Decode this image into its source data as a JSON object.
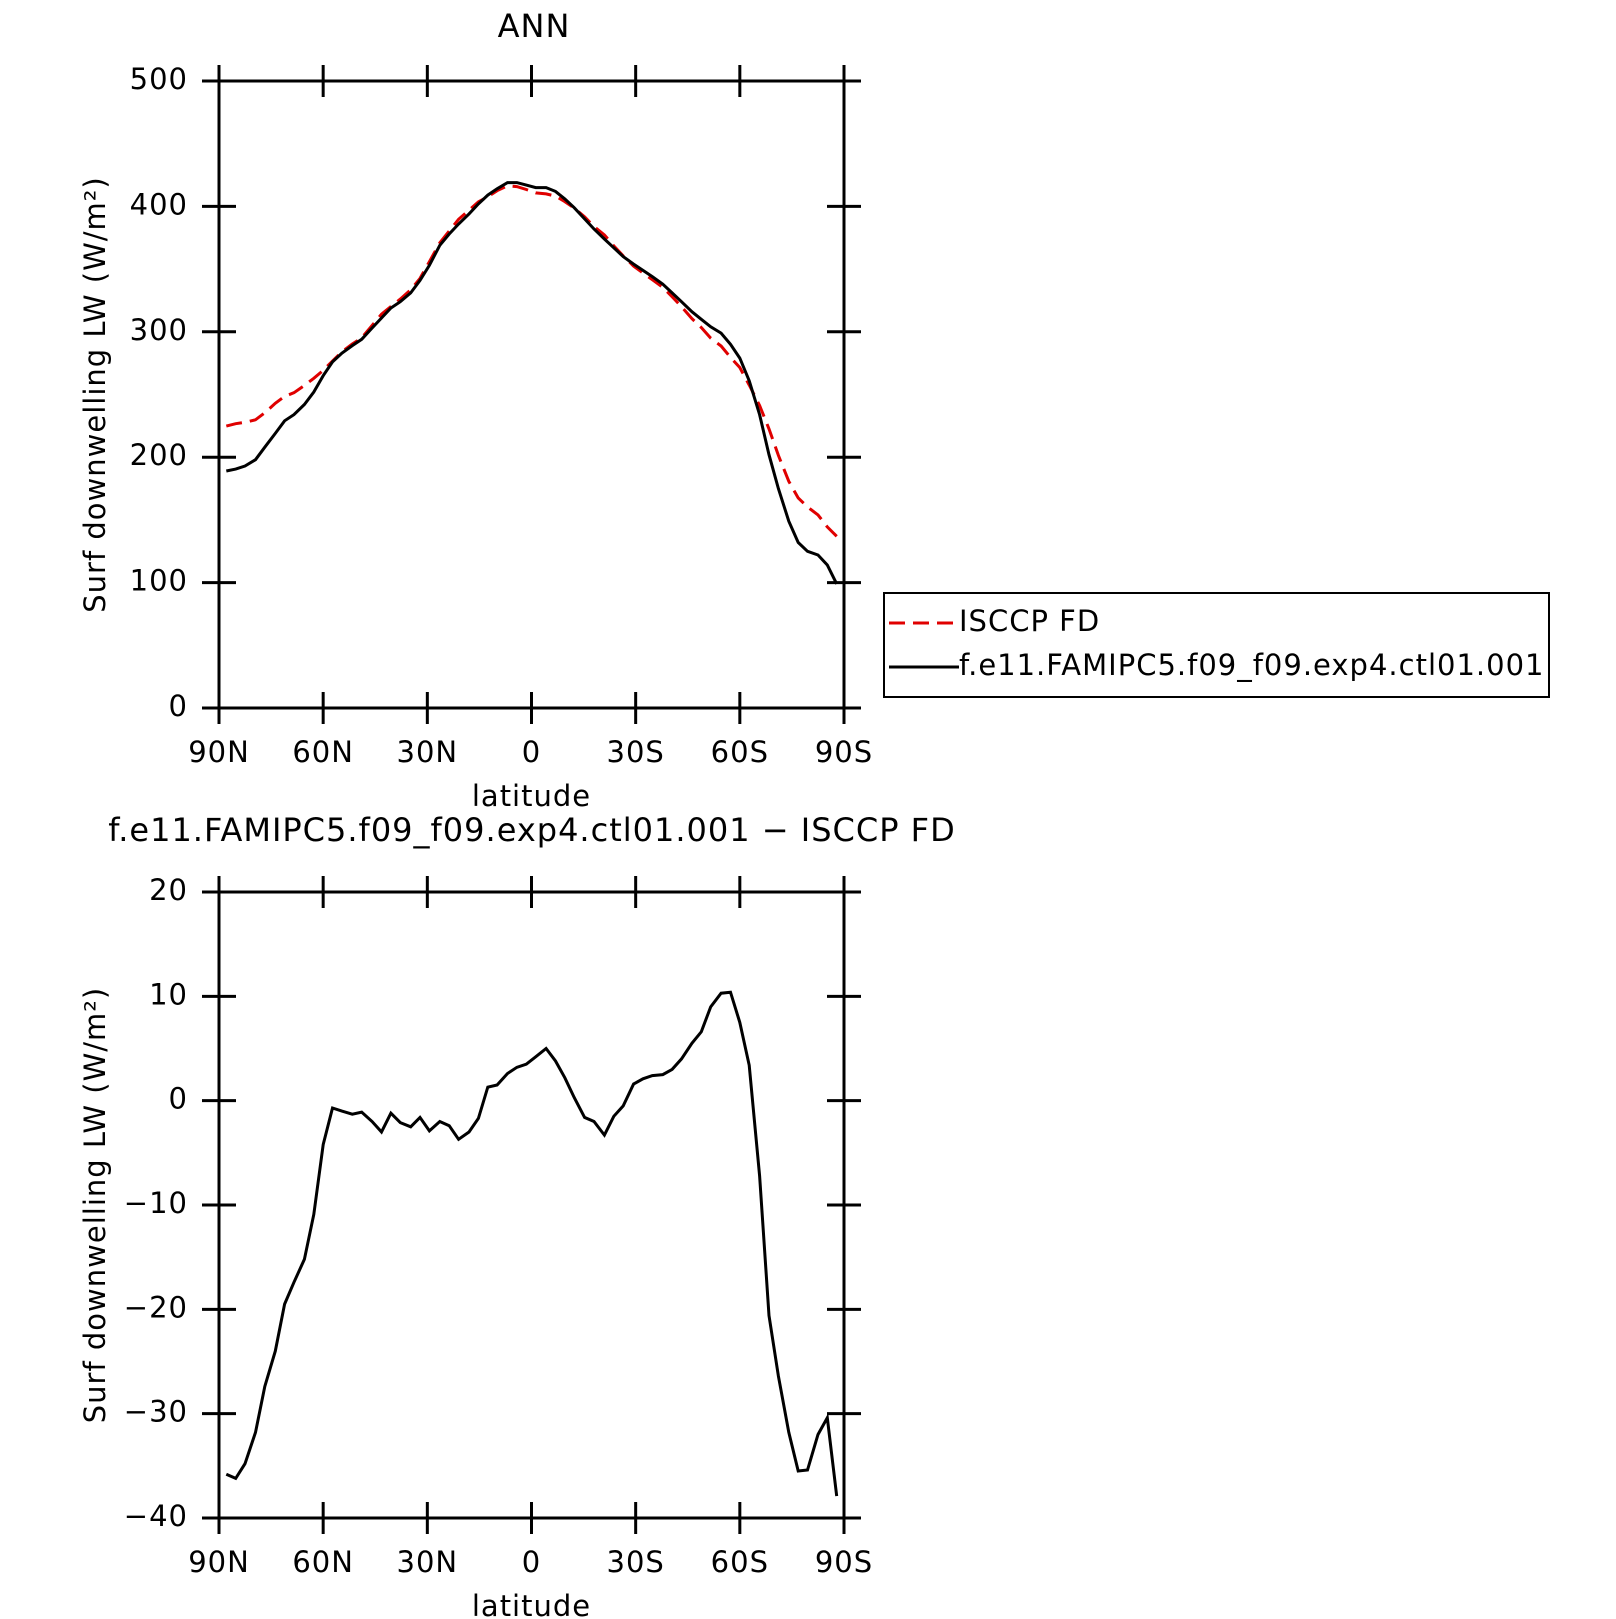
{
  "chart_data": [
    {
      "type": "line",
      "title": "ANN",
      "xlabel": "latitude",
      "ylabel": "Surf downwelling LW (W/m²)",
      "xlim": [
        90,
        -90
      ],
      "ylim": [
        0,
        500
      ],
      "xticks": [
        {
          "value": 90,
          "label": "90N"
        },
        {
          "value": 60,
          "label": "60N"
        },
        {
          "value": 30,
          "label": "30N"
        },
        0,
        {
          "value": -30,
          "label": "30S"
        },
        {
          "value": -60,
          "label": "60S"
        },
        {
          "value": -90,
          "label": "90S"
        }
      ],
      "yticks": [
        0,
        100,
        200,
        300,
        400,
        500
      ],
      "legend": "right",
      "x": [
        87.9,
        85.2,
        82.5,
        79.5,
        76.8,
        73.8,
        71.1,
        68.4,
        65.4,
        62.7,
        60,
        57.3,
        54.6,
        51.6,
        48.9,
        45.9,
        43.2,
        40.5,
        37.8,
        34.8,
        32.1,
        29.4,
        26.4,
        23.7,
        21,
        18,
        15.3,
        12.6,
        9.9,
        6.9,
        4.2,
        1.5,
        -1.2,
        -4.2,
        -6.9,
        -9.6,
        -12.3,
        -15.3,
        -18,
        -21,
        -23.7,
        -26.4,
        -29.4,
        -32.1,
        -34.8,
        -37.8,
        -40.5,
        -43.2,
        -46.2,
        -48.9,
        -51.6,
        -54.6,
        -57.3,
        -60,
        -62.7,
        -65.7,
        -68.4,
        -71.1,
        -74.1,
        -76.8,
        -79.5,
        -82.5,
        -85.2,
        -87.9
      ],
      "series": [
        {
          "name": "ISCCP FD",
          "color": "#e00000",
          "dash": true,
          "values": [
            224.8,
            226.7,
            227.8,
            229.8,
            235.4,
            243,
            248.5,
            251.4,
            257.2,
            262.9,
            269.2,
            276.7,
            284,
            290.3,
            295.1,
            305,
            314,
            320.2,
            326.1,
            333.5,
            342.6,
            355.9,
            371,
            380.4,
            389.7,
            397,
            403.7,
            407.7,
            412.5,
            416.4,
            415.8,
            413.5,
            410.8,
            410,
            408.2,
            403.8,
            398.7,
            391.6,
            384,
            377.3,
            368.5,
            360.5,
            352.4,
            346.9,
            341.6,
            335.5,
            328,
            320,
            310.5,
            303.4,
            295,
            288.7,
            279.6,
            271.5,
            257.6,
            241.2,
            222.6,
            201.4,
            180.8,
            167.5,
            160.4,
            154,
            144.4,
            136.9
          ]
        },
        {
          "name": "f.e11.FAMIPC5.f09_f09.exp4.ctl01.001",
          "color": "#000000",
          "dash": false,
          "values": [
            189,
            190.5,
            193,
            198,
            208,
            219,
            229,
            234,
            242,
            252,
            265,
            276,
            283,
            289,
            294,
            303,
            311,
            319,
            324,
            331,
            341,
            353,
            369,
            378,
            386,
            394,
            402,
            409,
            414,
            419,
            419,
            417,
            415,
            415,
            412,
            406,
            399,
            390,
            382,
            374,
            367,
            360,
            354,
            349,
            344,
            338,
            331,
            324,
            316,
            310,
            304,
            299,
            290,
            279,
            261,
            234,
            202,
            175,
            149,
            132,
            125,
            122,
            114,
            99
          ]
        }
      ]
    },
    {
      "type": "line",
      "title": "f.e11.FAMIPC5.f09_f09.exp4.ctl01.001 − ISCCP FD",
      "xlabel": "latitude",
      "ylabel": "Surf downwelling LW (W/m²)",
      "xlim": [
        90,
        -90
      ],
      "ylim": [
        -40,
        20
      ],
      "xticks": [
        {
          "value": 90,
          "label": "90N"
        },
        {
          "value": 60,
          "label": "60N"
        },
        {
          "value": 30,
          "label": "30N"
        },
        0,
        {
          "value": -30,
          "label": "30S"
        },
        {
          "value": -60,
          "label": "60S"
        },
        {
          "value": -90,
          "label": "90S"
        }
      ],
      "yticks": [
        {
          "value": -40,
          "label": "−40"
        },
        {
          "value": -30,
          "label": "−30"
        },
        {
          "value": -20,
          "label": "−20"
        },
        {
          "value": -10,
          "label": "−10"
        },
        0,
        10,
        20
      ],
      "x": [
        87.9,
        85.2,
        82.5,
        79.5,
        76.8,
        73.8,
        71.1,
        68.4,
        65.4,
        62.7,
        60,
        57.3,
        54.6,
        51.6,
        48.9,
        45.9,
        43.2,
        40.5,
        37.8,
        34.8,
        32.1,
        29.4,
        26.4,
        23.7,
        21,
        18,
        15.3,
        12.6,
        9.9,
        6.9,
        4.2,
        1.5,
        -1.2,
        -4.2,
        -6.9,
        -9.6,
        -12.3,
        -15.3,
        -18,
        -21,
        -23.7,
        -26.4,
        -29.4,
        -32.1,
        -34.8,
        -37.8,
        -40.5,
        -43.2,
        -46.2,
        -48.9,
        -51.6,
        -54.6,
        -57.3,
        -60,
        -62.7,
        -65.7,
        -68.4,
        -71.1,
        -74.1,
        -76.8,
        -79.5,
        -82.5,
        -85.2,
        -87.9
      ],
      "color": "#000000",
      "values": [
        -35.8,
        -36.2,
        -34.8,
        -31.8,
        -27.4,
        -24,
        -19.5,
        -17.4,
        -15.2,
        -10.9,
        -4.2,
        -0.7,
        -1,
        -1.3,
        -1.1,
        -2,
        -3,
        -1.2,
        -2.1,
        -2.5,
        -1.6,
        -2.9,
        -2,
        -2.4,
        -3.7,
        -3,
        -1.7,
        1.3,
        1.5,
        2.6,
        3.2,
        3.5,
        4.2,
        5,
        3.8,
        2.2,
        0.3,
        -1.6,
        -2,
        -3.3,
        -1.5,
        -0.5,
        1.6,
        2.1,
        2.4,
        2.5,
        3,
        4,
        5.5,
        6.6,
        9,
        10.3,
        10.4,
        7.5,
        3.4,
        -7.2,
        -20.6,
        -26.4,
        -31.8,
        -35.5,
        -35.4,
        -32,
        -30.4,
        -37.9
      ]
    }
  ]
}
